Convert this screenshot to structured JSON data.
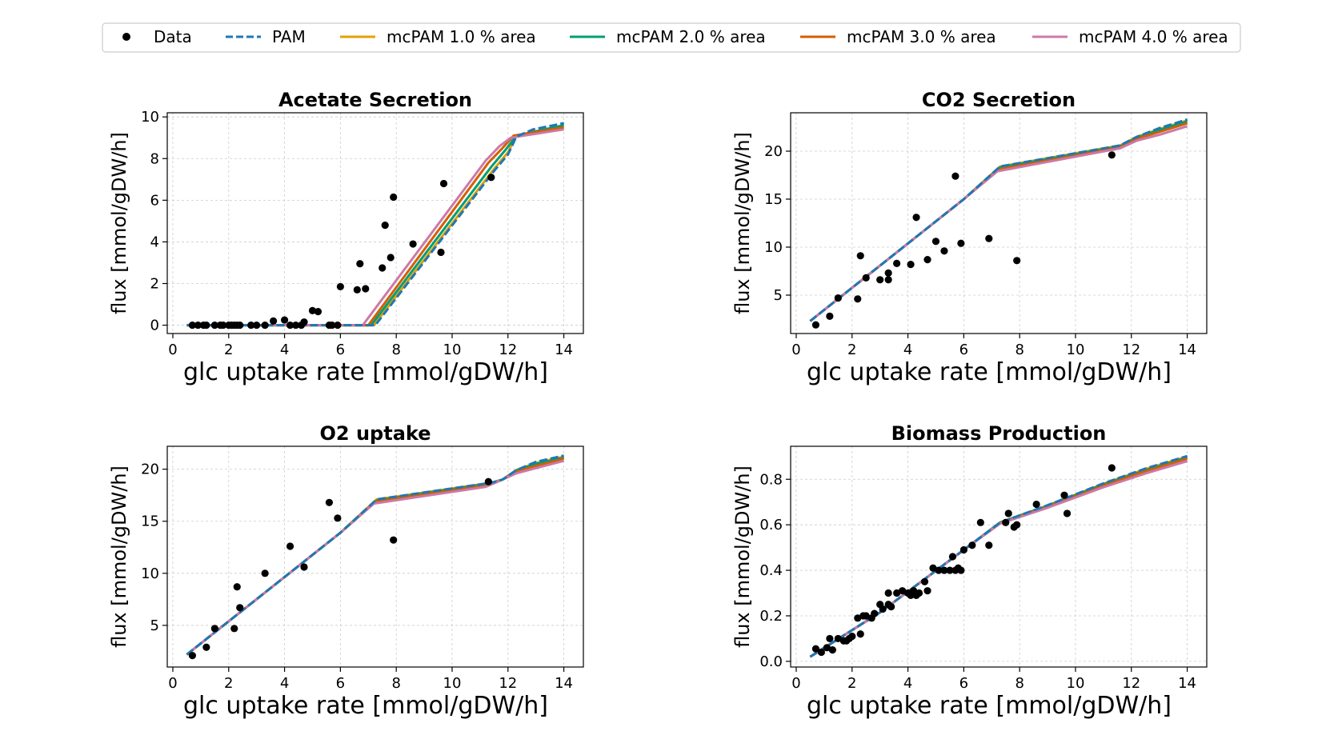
{
  "legend": {
    "entries": [
      {
        "label": "Data",
        "marker": "dot",
        "color": "#000000"
      },
      {
        "label": "PAM",
        "marker": "dashed",
        "color": "#1f77b4"
      },
      {
        "label": "mcPAM 1.0 % area",
        "marker": "line",
        "color": "#e69f00"
      },
      {
        "label": "mcPAM 2.0 % area",
        "marker": "line",
        "color": "#009e73"
      },
      {
        "label": "mcPAM 3.0 % area",
        "marker": "line",
        "color": "#d55e00"
      },
      {
        "label": "mcPAM 4.0 % area",
        "marker": "line",
        "color": "#cc79a7"
      }
    ]
  },
  "chart_data": [
    {
      "type": "line",
      "title": "Acetate Secretion",
      "xlabel": "glc uptake rate [mmol/gDW/h]",
      "ylabel": "flux [mmol/gDW/h]",
      "xlim": [
        -0.2,
        14.7
      ],
      "ylim": [
        -0.4,
        10.2
      ],
      "xticks": [
        0,
        2,
        4,
        6,
        8,
        10,
        12,
        14
      ],
      "yticks": [
        0,
        2,
        4,
        6,
        8,
        10
      ],
      "grid": true,
      "series": [
        {
          "name": "mcPAM 4.0 % area",
          "x": [
            0.5,
            6.8,
            11.2,
            11.7,
            12.1,
            14
          ],
          "y": [
            0,
            0,
            7.9,
            8.6,
            9.0,
            9.4
          ]
        },
        {
          "name": "mcPAM 3.0 % area",
          "x": [
            0.5,
            7.0,
            11.3,
            11.8,
            12.2,
            14
          ],
          "y": [
            0,
            0,
            7.8,
            8.5,
            9.1,
            9.5
          ]
        },
        {
          "name": "mcPAM 2.0 % area",
          "x": [
            0.5,
            7.1,
            11.4,
            11.9,
            12.3,
            14
          ],
          "y": [
            0,
            0,
            7.6,
            8.4,
            9.1,
            9.6
          ]
        },
        {
          "name": "mcPAM 1.0 % area",
          "x": [
            0.5,
            7.2,
            11.5,
            12.0,
            12.3,
            14
          ],
          "y": [
            0,
            0,
            7.5,
            8.3,
            9.1,
            9.6
          ]
        },
        {
          "name": "PAM",
          "x": [
            0.5,
            7.25,
            11.5,
            12.0,
            12.3,
            12.9,
            14
          ],
          "y": [
            0,
            0,
            7.4,
            8.2,
            9.05,
            9.4,
            9.7
          ]
        }
      ],
      "data_points": {
        "x": [
          0.7,
          0.9,
          1.1,
          1.2,
          1.5,
          1.7,
          1.8,
          2.0,
          2.1,
          2.2,
          2.3,
          2.4,
          2.8,
          3.0,
          3.3,
          3.6,
          4.0,
          4.2,
          4.4,
          4.6,
          4.7,
          5.0,
          5.2,
          5.6,
          5.7,
          5.9,
          6.0,
          6.6,
          6.7,
          6.9,
          7.5,
          7.6,
          7.8,
          7.9,
          8.6,
          9.6,
          9.7,
          11.4
        ],
        "y": [
          0,
          0,
          0,
          0,
          0,
          0,
          0,
          0,
          0,
          0,
          0,
          0,
          0,
          0,
          0,
          0.2,
          0.25,
          0,
          0,
          0,
          0.15,
          0.7,
          0.65,
          0,
          0,
          0,
          1.85,
          1.7,
          2.95,
          1.75,
          2.75,
          4.8,
          3.25,
          6.15,
          3.9,
          3.5,
          6.8,
          7.1
        ]
      }
    },
    {
      "type": "line",
      "title": "CO2 Secretion",
      "xlabel": "glc uptake rate [mmol/gDW/h]",
      "ylabel": "flux [mmol/gDW/h]",
      "xlim": [
        -0.2,
        14.7
      ],
      "ylim": [
        1.0,
        24.0
      ],
      "xticks": [
        0,
        2,
        4,
        6,
        8,
        10,
        12,
        14
      ],
      "yticks": [
        5,
        10,
        15,
        20
      ],
      "grid": true,
      "series": [
        {
          "name": "mcPAM 4.0 % area",
          "x": [
            0.5,
            6.0,
            7.2,
            11.6,
            12.2,
            13.0,
            14
          ],
          "y": [
            2.3,
            15.0,
            17.9,
            20.3,
            21.1,
            21.7,
            22.6
          ]
        },
        {
          "name": "mcPAM 3.0 % area",
          "x": [
            0.5,
            6.0,
            7.25,
            11.6,
            12.2,
            13.0,
            14
          ],
          "y": [
            2.3,
            15.0,
            18.1,
            20.4,
            21.3,
            22.0,
            22.9
          ]
        },
        {
          "name": "mcPAM 2.0 % area",
          "x": [
            0.5,
            6.0,
            7.3,
            11.6,
            12.2,
            13.0,
            14
          ],
          "y": [
            2.3,
            15.0,
            18.3,
            20.5,
            21.4,
            22.2,
            23.1
          ]
        },
        {
          "name": "mcPAM 1.0 % area",
          "x": [
            0.5,
            6.0,
            7.3,
            11.6,
            12.2,
            13.0,
            14
          ],
          "y": [
            2.3,
            15.0,
            18.4,
            20.6,
            21.5,
            22.3,
            23.2
          ]
        },
        {
          "name": "PAM",
          "x": [
            0.5,
            6.0,
            7.3,
            11.6,
            12.2,
            13.0,
            14
          ],
          "y": [
            2.3,
            15.0,
            18.4,
            20.6,
            21.5,
            22.4,
            23.3
          ]
        }
      ],
      "data_points": {
        "x": [
          0.7,
          1.2,
          1.5,
          2.2,
          2.3,
          2.5,
          3.0,
          3.3,
          3.3,
          3.6,
          4.1,
          4.3,
          4.7,
          5.0,
          5.3,
          5.7,
          5.9,
          6.9,
          7.9,
          11.3
        ],
        "y": [
          1.9,
          2.8,
          4.7,
          4.6,
          9.1,
          6.8,
          6.6,
          6.6,
          7.3,
          8.3,
          8.2,
          13.1,
          8.7,
          10.6,
          9.6,
          17.4,
          10.4,
          10.9,
          8.6,
          19.6
        ]
      }
    },
    {
      "type": "line",
      "title": "O2 uptake",
      "xlabel": "glc uptake rate [mmol/gDW/h]",
      "ylabel": "flux [mmol/gDW/h]",
      "xlim": [
        -0.2,
        14.7
      ],
      "ylim": [
        1.0,
        22.2
      ],
      "xticks": [
        0,
        2,
        4,
        6,
        8,
        10,
        12,
        14
      ],
      "yticks": [
        5,
        10,
        15,
        20
      ],
      "grid": true,
      "series": [
        {
          "name": "mcPAM 4.0 % area",
          "x": [
            0.5,
            6.0,
            7.2,
            11.2,
            11.8,
            12.3,
            13.0,
            14
          ],
          "y": [
            2.2,
            13.9,
            16.7,
            18.3,
            19.0,
            19.6,
            20.1,
            20.8
          ]
        },
        {
          "name": "mcPAM 3.0 % area",
          "x": [
            0.5,
            6.0,
            7.25,
            11.3,
            11.8,
            12.3,
            13.0,
            14
          ],
          "y": [
            2.2,
            13.9,
            16.9,
            18.5,
            19.0,
            19.8,
            20.3,
            21.0
          ]
        },
        {
          "name": "mcPAM 2.0 % area",
          "x": [
            0.5,
            6.0,
            7.3,
            11.3,
            11.8,
            12.3,
            13.0,
            14
          ],
          "y": [
            2.2,
            13.9,
            17.0,
            18.6,
            19.0,
            19.9,
            20.5,
            21.1
          ]
        },
        {
          "name": "mcPAM 1.0 % area",
          "x": [
            0.5,
            6.0,
            7.3,
            11.4,
            11.8,
            12.3,
            13.0,
            14
          ],
          "y": [
            2.2,
            13.9,
            17.1,
            18.7,
            19.0,
            19.9,
            20.6,
            21.2
          ]
        },
        {
          "name": "PAM",
          "x": [
            0.5,
            6.0,
            7.3,
            11.4,
            11.8,
            12.3,
            13.0,
            14
          ],
          "y": [
            2.2,
            13.9,
            17.1,
            18.7,
            19.0,
            19.9,
            20.7,
            21.3
          ]
        }
      ],
      "data_points": {
        "x": [
          0.7,
          1.2,
          1.5,
          2.2,
          2.3,
          2.4,
          3.3,
          4.2,
          4.7,
          5.6,
          5.9,
          7.9,
          11.3
        ],
        "y": [
          2.1,
          2.9,
          4.7,
          4.7,
          8.7,
          6.7,
          10.0,
          12.6,
          10.6,
          16.8,
          15.3,
          13.2,
          18.8
        ]
      }
    },
    {
      "type": "line",
      "title": "Biomass Production",
      "xlabel": "glc uptake rate [mmol/gDW/h]",
      "ylabel": "flux [mmol/gDW/h]",
      "xlim": [
        -0.2,
        14.7
      ],
      "ylim": [
        -0.025,
        0.945
      ],
      "xticks": [
        0,
        2,
        4,
        6,
        8,
        10,
        12,
        14
      ],
      "yticks": [
        0.0,
        0.2,
        0.4,
        0.6,
        0.8
      ],
      "grid": true,
      "series": [
        {
          "name": "mcPAM 4.0 % area",
          "x": [
            0.5,
            3.0,
            6.0,
            7.3,
            9.0,
            11.0,
            12.5,
            14
          ],
          "y": [
            0.02,
            0.215,
            0.49,
            0.605,
            0.675,
            0.765,
            0.825,
            0.88
          ]
        },
        {
          "name": "mcPAM 3.0 % area",
          "x": [
            0.5,
            3.0,
            6.0,
            7.3,
            9.0,
            11.0,
            12.5,
            14
          ],
          "y": [
            0.02,
            0.215,
            0.49,
            0.607,
            0.68,
            0.772,
            0.835,
            0.89
          ]
        },
        {
          "name": "mcPAM 2.0 % area",
          "x": [
            0.5,
            3.0,
            6.0,
            7.3,
            9.0,
            11.0,
            12.5,
            14
          ],
          "y": [
            0.02,
            0.215,
            0.49,
            0.61,
            0.683,
            0.777,
            0.84,
            0.895
          ]
        },
        {
          "name": "mcPAM 1.0 % area",
          "x": [
            0.5,
            3.0,
            6.0,
            7.3,
            9.0,
            11.0,
            12.5,
            14
          ],
          "y": [
            0.02,
            0.215,
            0.49,
            0.61,
            0.685,
            0.78,
            0.845,
            0.9
          ]
        },
        {
          "name": "PAM",
          "x": [
            0.5,
            3.0,
            6.0,
            7.3,
            9.0,
            11.0,
            12.5,
            14
          ],
          "y": [
            0.02,
            0.215,
            0.49,
            0.61,
            0.686,
            0.782,
            0.847,
            0.902
          ]
        }
      ],
      "data_points": {
        "x": [
          0.7,
          0.9,
          1.1,
          1.2,
          1.3,
          1.5,
          1.7,
          1.8,
          1.9,
          2.0,
          2.2,
          2.3,
          2.4,
          2.5,
          2.7,
          2.8,
          3.0,
          3.1,
          3.3,
          3.3,
          3.4,
          3.6,
          3.8,
          4.0,
          4.1,
          4.2,
          4.2,
          4.3,
          4.4,
          4.6,
          4.7,
          4.9,
          5.1,
          5.3,
          5.5,
          5.6,
          5.7,
          5.8,
          5.9,
          6.0,
          6.3,
          6.6,
          6.9,
          7.5,
          7.6,
          7.8,
          7.9,
          8.6,
          9.6,
          9.7,
          11.3
        ],
        "y": [
          0.055,
          0.04,
          0.06,
          0.1,
          0.05,
          0.1,
          0.09,
          0.09,
          0.1,
          0.11,
          0.19,
          0.12,
          0.2,
          0.2,
          0.19,
          0.21,
          0.25,
          0.23,
          0.3,
          0.25,
          0.24,
          0.3,
          0.31,
          0.3,
          0.29,
          0.31,
          0.3,
          0.29,
          0.3,
          0.35,
          0.31,
          0.41,
          0.4,
          0.4,
          0.4,
          0.46,
          0.4,
          0.41,
          0.4,
          0.49,
          0.51,
          0.61,
          0.51,
          0.61,
          0.65,
          0.59,
          0.6,
          0.69,
          0.73,
          0.65,
          0.85
        ]
      }
    }
  ]
}
